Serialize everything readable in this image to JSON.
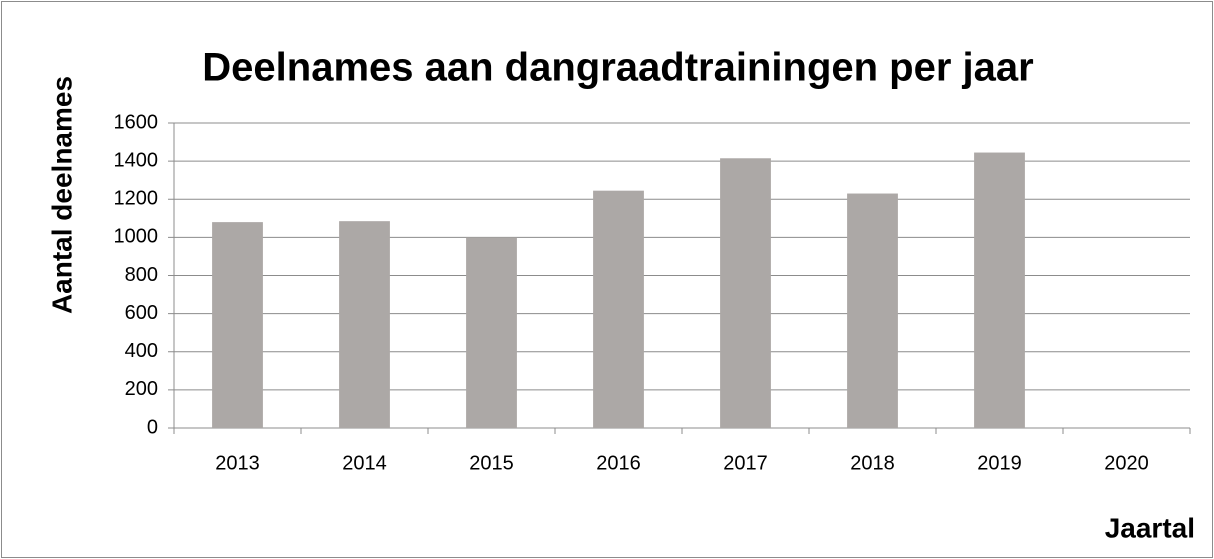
{
  "chart_data": {
    "type": "bar",
    "title": "Deelnames aan dangraadtrainingen per jaar",
    "x_label": "Jaartal",
    "y_label": "Aantal deelnames",
    "categories": [
      "2013",
      "2014",
      "2015",
      "2016",
      "2017",
      "2018",
      "2019",
      "2020"
    ],
    "values": [
      1080,
      1085,
      1000,
      1245,
      1415,
      1230,
      1445,
      null
    ],
    "color": "#aca8a6",
    "ylim": [
      0,
      1600
    ],
    "yticks": [
      0,
      200,
      400,
      600,
      800,
      1000,
      1200,
      1400,
      1600
    ],
    "grid": true
  }
}
